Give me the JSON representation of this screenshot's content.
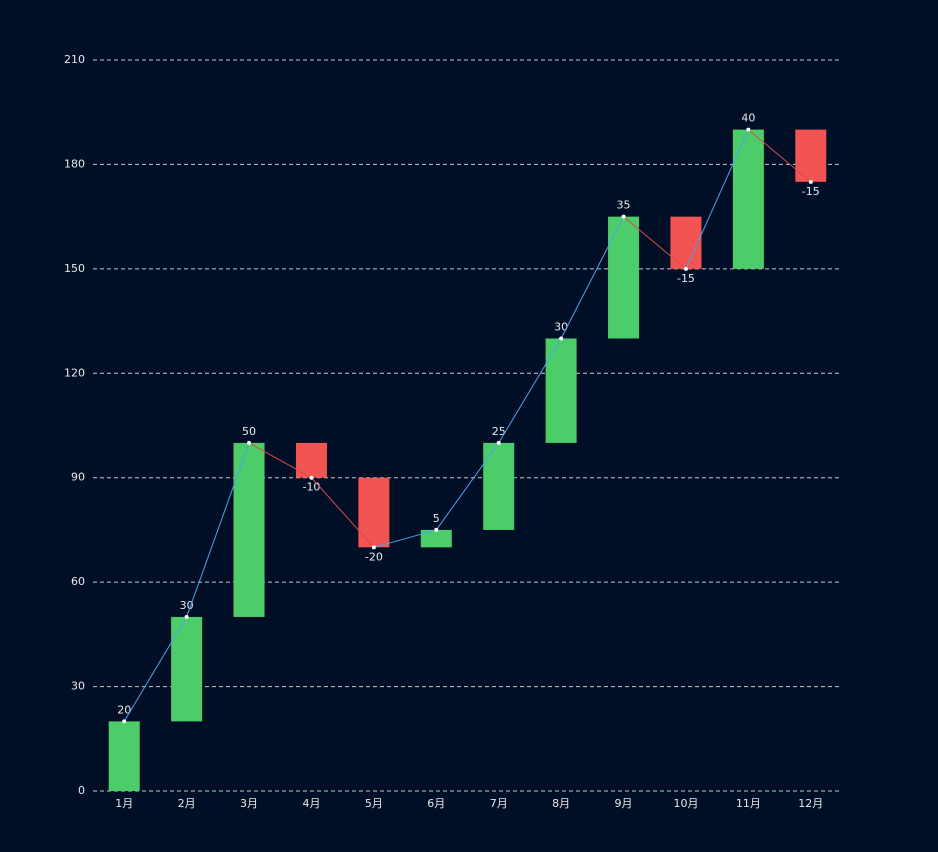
{
  "chart_data": {
    "type": "waterfall",
    "categories": [
      "1月",
      "2月",
      "3月",
      "4月",
      "5月",
      "6月",
      "7月",
      "8月",
      "9月",
      "10月",
      "11月",
      "12月"
    ],
    "values": [
      20,
      30,
      50,
      -10,
      -20,
      5,
      25,
      30,
      35,
      -15,
      40,
      -15
    ],
    "increase_color": "#4ccd6a",
    "decrease_color": "#f25353",
    "increase_line_color": "#4aa3ee",
    "decrease_line_color": "#e04848",
    "ylim": [
      0,
      210
    ],
    "yticks": [
      0,
      30,
      60,
      90,
      120,
      150,
      180,
      210
    ],
    "grid": true
  }
}
